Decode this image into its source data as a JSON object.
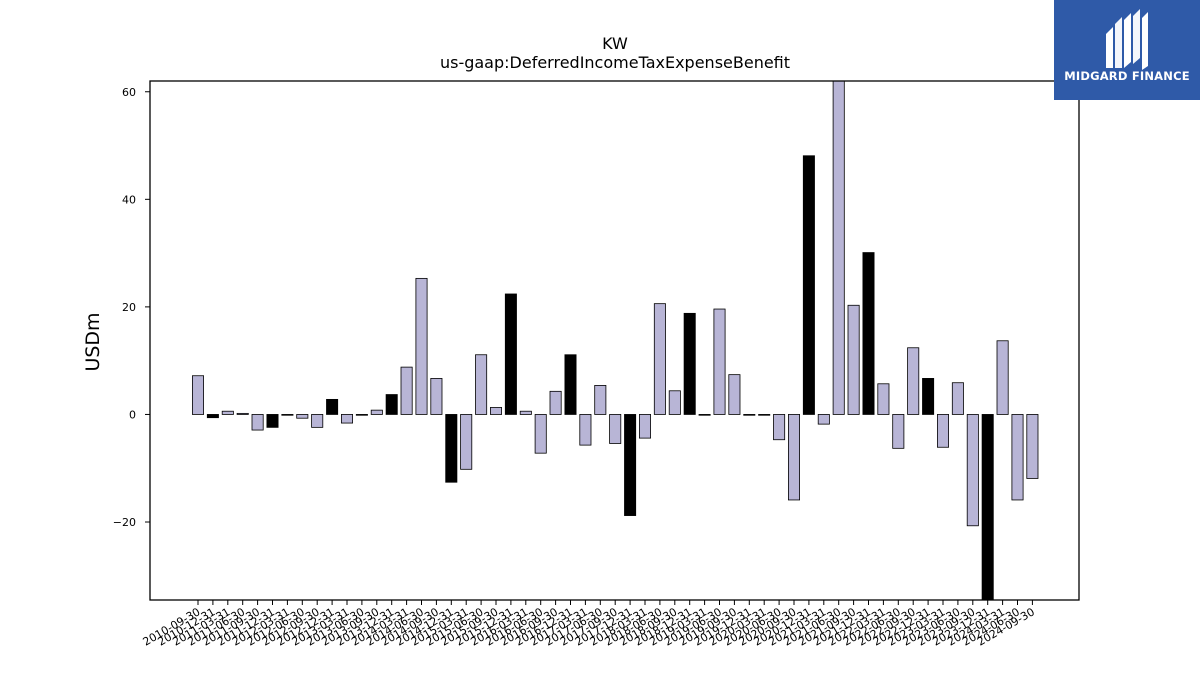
{
  "logo": {
    "text": "MIDGARD FINANCE"
  },
  "chart_data": {
    "type": "bar",
    "title": "KW",
    "subtitle": "us-gaap:DeferredIncomeTaxExpenseBenefit",
    "ylabel": "USDm",
    "xlabel": "",
    "ylim": [
      -34.5,
      62
    ],
    "yticks": [
      -20,
      0,
      20,
      40,
      60
    ],
    "grid": false,
    "colors": {
      "quarter": "#b8b5d6",
      "annual": "#000000",
      "edge": "#000000"
    },
    "categories": [
      "2010-09-30",
      "2010-12-31",
      "2011-03-31",
      "2011-06-30",
      "2011-09-30",
      "2011-12-31",
      "2012-03-31",
      "2012-06-30",
      "2012-09-30",
      "2012-12-31",
      "2013-03-31",
      "2013-06-30",
      "2013-09-30",
      "2013-12-31",
      "2014-03-31",
      "2014-06-30",
      "2014-09-30",
      "2014-12-31",
      "2015-03-31",
      "2015-06-30",
      "2015-09-30",
      "2015-12-31",
      "2016-03-31",
      "2016-06-30",
      "2016-09-30",
      "2016-12-31",
      "2017-03-31",
      "2017-06-30",
      "2017-09-30",
      "2017-12-31",
      "2018-03-31",
      "2018-06-30",
      "2018-09-30",
      "2018-12-31",
      "2019-03-31",
      "2019-06-30",
      "2019-09-30",
      "2019-12-31",
      "2020-03-31",
      "2020-06-30",
      "2020-09-30",
      "2020-12-31",
      "2021-03-31",
      "2021-06-30",
      "2021-09-30",
      "2021-12-31",
      "2022-03-31",
      "2022-06-30",
      "2022-09-30",
      "2022-12-31",
      "2023-03-31",
      "2023-06-30",
      "2023-09-30",
      "2023-12-31",
      "2024-03-31",
      "2024-06-30",
      "2024-09-30"
    ],
    "values": [
      7.2,
      -0.6,
      0.6,
      0.2,
      -2.9,
      -2.4,
      0.0,
      -0.7,
      -2.4,
      2.8,
      -1.6,
      0.0,
      0.8,
      3.7,
      8.8,
      25.3,
      6.7,
      -12.6,
      -10.2,
      11.1,
      1.3,
      22.4,
      0.6,
      -7.2,
      4.3,
      11.1,
      -5.7,
      5.4,
      -5.4,
      -18.8,
      -4.4,
      20.6,
      4.4,
      18.8,
      0.0,
      19.6,
      7.4,
      0.0,
      0.0,
      -4.7,
      -15.9,
      48.1,
      -1.8,
      62.0,
      20.3,
      30.1,
      5.7,
      -6.3,
      12.4,
      6.7,
      -6.1,
      5.9,
      -20.7,
      -34.5,
      13.7,
      -15.9,
      -11.9
    ],
    "annual_flags": [
      false,
      true,
      false,
      false,
      false,
      true,
      false,
      false,
      false,
      true,
      false,
      false,
      false,
      true,
      false,
      false,
      false,
      true,
      false,
      false,
      false,
      true,
      false,
      false,
      false,
      true,
      false,
      false,
      false,
      true,
      false,
      false,
      false,
      true,
      false,
      false,
      false,
      true,
      false,
      false,
      false,
      true,
      false,
      false,
      false,
      true,
      false,
      false,
      false,
      true,
      false,
      false,
      false,
      true,
      false,
      false,
      false
    ]
  }
}
